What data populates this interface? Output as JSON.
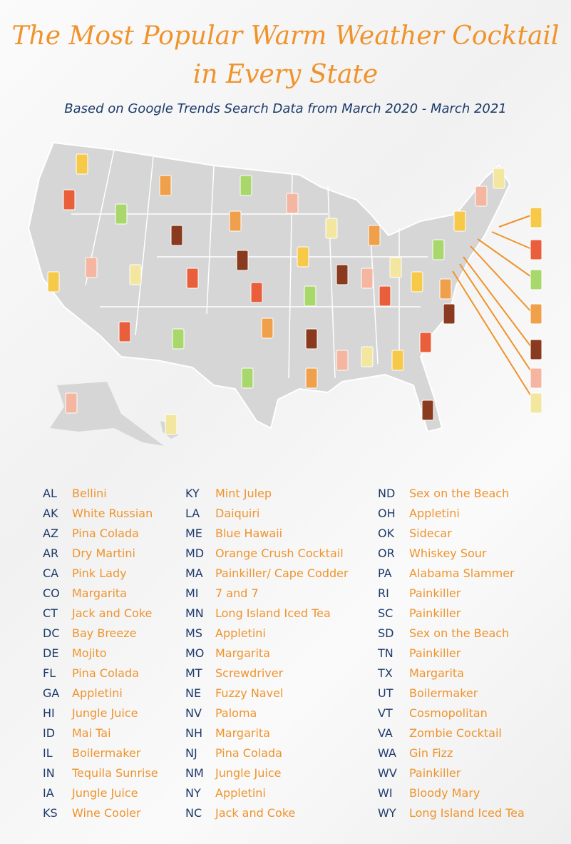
{
  "header": {
    "title_lines": [
      "The Most Popular Warm Weather Cocktail",
      "in Every State"
    ],
    "subtitle": "Based on Google Trends Search Data from March 2020 - March 2021"
  },
  "legend": {
    "columns": [
      [
        [
          "AL",
          "Bellini"
        ],
        [
          "AK",
          "White Russian"
        ],
        [
          "AZ",
          "Pina Colada"
        ],
        [
          "AR",
          "Dry Martini"
        ],
        [
          "CA",
          "Pink Lady"
        ],
        [
          "CO",
          "Margarita"
        ],
        [
          "CT",
          "Jack and Coke"
        ],
        [
          "DC",
          "Bay Breeze"
        ],
        [
          "DE",
          "Mojito"
        ],
        [
          "FL",
          "Pina Colada"
        ],
        [
          "GA",
          "Appletini"
        ],
        [
          "HI",
          "Jungle Juice"
        ],
        [
          "ID",
          "Mai Tai"
        ],
        [
          "IL",
          "Boilermaker"
        ],
        [
          "IN",
          "Tequila Sunrise"
        ],
        [
          "IA",
          "Jungle Juice"
        ],
        [
          "KS",
          "Wine Cooler"
        ]
      ],
      [
        [
          "KY",
          "Mint Julep"
        ],
        [
          "LA",
          "Daiquiri"
        ],
        [
          "ME",
          "Blue Hawaii"
        ],
        [
          "MD",
          "Orange Crush Cocktail"
        ],
        [
          "MA",
          "Painkiller/ Cape Codder"
        ],
        [
          "MI",
          "7 and 7"
        ],
        [
          "MN",
          "Long Island Iced Tea"
        ],
        [
          "MS",
          "Appletini"
        ],
        [
          "MO",
          "Margarita"
        ],
        [
          "MT",
          "Screwdriver"
        ],
        [
          "NE",
          "Fuzzy Navel"
        ],
        [
          "NV",
          "Paloma"
        ],
        [
          "NH",
          "Margarita"
        ],
        [
          "NJ",
          "Pina Colada"
        ],
        [
          "NM",
          "Jungle Juice"
        ],
        [
          "NY",
          "Appletini"
        ],
        [
          "NC",
          "Jack and Coke"
        ]
      ],
      [
        [
          "ND",
          "Sex on the Beach"
        ],
        [
          "OH",
          "Appletini"
        ],
        [
          "OK",
          "Sidecar"
        ],
        [
          "OR",
          "Whiskey Sour"
        ],
        [
          "PA",
          "Alabama Slammer"
        ],
        [
          "RI",
          "Painkiller"
        ],
        [
          "SC",
          "Painkiller"
        ],
        [
          "SD",
          "Sex on the Beach"
        ],
        [
          "TN",
          "Painkiller"
        ],
        [
          "TX",
          "Margarita"
        ],
        [
          "UT",
          "Boilermaker"
        ],
        [
          "VT",
          "Cosmopolitan"
        ],
        [
          "VA",
          "Zombie Cocktail"
        ],
        [
          "WA",
          "Gin Fizz"
        ],
        [
          "WV",
          "Painkiller"
        ],
        [
          "WI",
          "Bloody Mary"
        ],
        [
          "WY",
          "Long Island Iced Tea"
        ]
      ]
    ]
  }
}
